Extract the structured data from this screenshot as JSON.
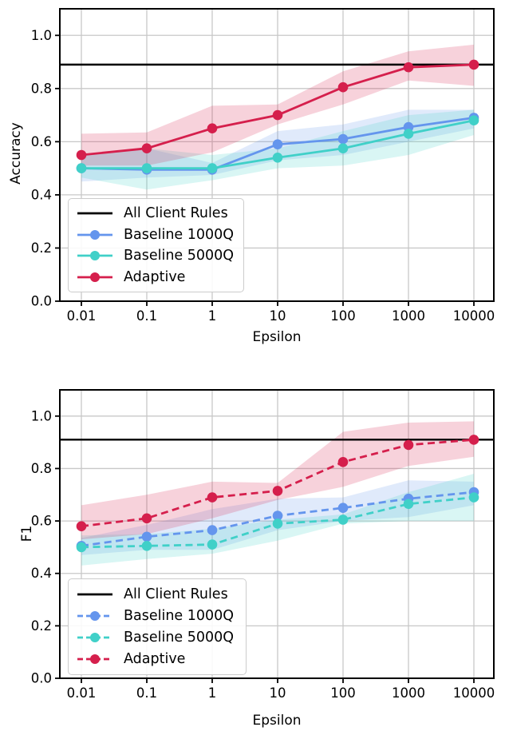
{
  "figure": {
    "background": "#ffffff",
    "grid_color": "#c8c8c8",
    "text_color": "#000000"
  },
  "chart_data": [
    {
      "id": "accuracy",
      "type": "line",
      "x_scale": "log",
      "title": "",
      "xlabel": "Epsilon",
      "ylabel": "Accuracy",
      "x": [
        0.01,
        0.1,
        1,
        10,
        100,
        1000,
        10000
      ],
      "x_tick_labels": [
        "0.01",
        "0.1",
        "1",
        "10",
        "100",
        "1000",
        "10000"
      ],
      "y_tick_labels": [
        "0.0",
        "0.2",
        "0.4",
        "0.6",
        "0.8",
        "1.0"
      ],
      "ylim": [
        0,
        1.1
      ],
      "grid": true,
      "line_style": "solid",
      "hline": {
        "label": "All Client Rules",
        "value": 0.89,
        "color": "#000000"
      },
      "series": [
        {
          "name": "Baseline 1000Q",
          "color": "#6495ed",
          "values": [
            0.5,
            0.495,
            0.495,
            0.59,
            0.61,
            0.655,
            0.69
          ],
          "band_low": [
            0.45,
            0.465,
            0.475,
            0.53,
            0.55,
            0.6,
            0.65
          ],
          "band_high": [
            0.55,
            0.575,
            0.52,
            0.64,
            0.665,
            0.72,
            0.72
          ]
        },
        {
          "name": "Baseline 5000Q",
          "color": "#40d0c8",
          "values": [
            0.5,
            0.5,
            0.5,
            0.54,
            0.575,
            0.63,
            0.68
          ],
          "band_low": [
            0.465,
            0.42,
            0.455,
            0.5,
            0.51,
            0.55,
            0.625
          ],
          "band_high": [
            0.545,
            0.575,
            0.55,
            0.575,
            0.64,
            0.7,
            0.72
          ]
        },
        {
          "name": "Adaptive",
          "color": "#d51f4c",
          "values": [
            0.55,
            0.575,
            0.65,
            0.7,
            0.805,
            0.88,
            0.89
          ],
          "band_low": [
            0.51,
            0.51,
            0.56,
            0.665,
            0.74,
            0.83,
            0.81
          ],
          "band_high": [
            0.63,
            0.635,
            0.735,
            0.74,
            0.865,
            0.94,
            0.965
          ]
        }
      ],
      "legend": {
        "position": "lower left",
        "items": [
          "All Client Rules",
          "Baseline 1000Q",
          "Baseline 5000Q",
          "Adaptive"
        ]
      }
    },
    {
      "id": "f1",
      "type": "line",
      "x_scale": "log",
      "title": "",
      "xlabel": "Epsilon",
      "ylabel": "F1",
      "x": [
        0.01,
        0.1,
        1,
        10,
        100,
        1000,
        10000
      ],
      "x_tick_labels": [
        "0.01",
        "0.1",
        "1",
        "10",
        "100",
        "1000",
        "10000"
      ],
      "y_tick_labels": [
        "0.0",
        "0.2",
        "0.4",
        "0.6",
        "0.8",
        "1.0"
      ],
      "ylim": [
        0,
        1.1
      ],
      "grid": true,
      "line_style": "dashed",
      "hline": {
        "label": "All Client Rules",
        "value": 0.91,
        "color": "#000000"
      },
      "series": [
        {
          "name": "Baseline 1000Q",
          "color": "#6495ed",
          "values": [
            0.505,
            0.54,
            0.565,
            0.62,
            0.65,
            0.685,
            0.71
          ],
          "band_low": [
            0.47,
            0.49,
            0.49,
            0.565,
            0.6,
            0.615,
            0.66
          ],
          "band_high": [
            0.535,
            0.585,
            0.645,
            0.685,
            0.69,
            0.755,
            0.75
          ]
        },
        {
          "name": "Baseline 5000Q",
          "color": "#40d0c8",
          "values": [
            0.5,
            0.505,
            0.51,
            0.59,
            0.605,
            0.665,
            0.69
          ],
          "band_low": [
            0.43,
            0.455,
            0.475,
            0.525,
            0.59,
            0.6,
            0.6
          ],
          "band_high": [
            0.545,
            0.55,
            0.57,
            0.605,
            0.625,
            0.71,
            0.78
          ]
        },
        {
          "name": "Adaptive",
          "color": "#d51f4c",
          "values": [
            0.58,
            0.61,
            0.69,
            0.715,
            0.825,
            0.89,
            0.91
          ],
          "band_low": [
            0.53,
            0.55,
            0.61,
            0.68,
            0.73,
            0.81,
            0.845
          ],
          "band_high": [
            0.66,
            0.7,
            0.75,
            0.745,
            0.94,
            0.975,
            0.98
          ]
        }
      ],
      "legend": {
        "position": "lower left",
        "items": [
          "All Client Rules",
          "Baseline 1000Q",
          "Baseline 5000Q",
          "Adaptive"
        ]
      }
    }
  ]
}
